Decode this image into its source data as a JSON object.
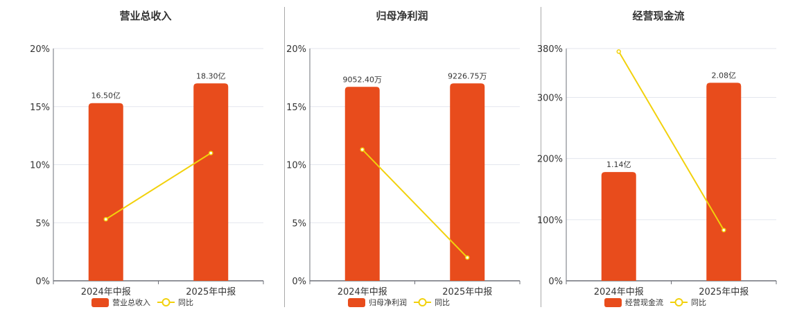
{
  "colors": {
    "bar": "#E84C1C",
    "line": "#F2D10C",
    "grid": "#e3e6ee",
    "axis": "#6e7079"
  },
  "legend": {
    "line_label": "同比"
  },
  "chart_data": [
    {
      "type": "bar+line",
      "title": "营业总收入",
      "categories": [
        "2024年中报",
        "2025年中报"
      ],
      "series": [
        {
          "name": "营业总收入",
          "type": "bar",
          "values": [
            15.3,
            17.0
          ],
          "labels": [
            "16.50亿",
            "18.30亿"
          ]
        },
        {
          "name": "同比",
          "type": "line",
          "values": [
            5.3,
            11.0
          ]
        }
      ],
      "y_ticks": [
        "0%",
        "5%",
        "10%",
        "15%",
        "20%"
      ],
      "ylim": [
        0,
        20
      ],
      "grid": true,
      "legend_position": "bottom"
    },
    {
      "type": "bar+line",
      "title": "归母净利润",
      "categories": [
        "2024年中报",
        "2025年中报"
      ],
      "series": [
        {
          "name": "归母净利润",
          "type": "bar",
          "values": [
            16.7,
            17.0
          ],
          "labels": [
            "9052.40万",
            "9226.75万"
          ]
        },
        {
          "name": "同比",
          "type": "line",
          "values": [
            11.3,
            2.0
          ]
        }
      ],
      "y_ticks": [
        "0%",
        "5%",
        "10%",
        "15%",
        "20%"
      ],
      "ylim": [
        0,
        20
      ],
      "grid": true,
      "legend_position": "bottom"
    },
    {
      "type": "bar+line",
      "title": "经营现金流",
      "categories": [
        "2024年中报",
        "2025年中报"
      ],
      "series": [
        {
          "name": "经营现金流",
          "type": "bar",
          "values": [
            178,
            324
          ],
          "labels": [
            "1.14亿",
            "2.08亿"
          ]
        },
        {
          "name": "同比",
          "type": "line",
          "values": [
            375,
            83
          ]
        }
      ],
      "y_ticks": [
        "0%",
        "100%",
        "200%",
        "300%",
        "380%"
      ],
      "y_tick_values": [
        0,
        100,
        200,
        300,
        380
      ],
      "ylim": [
        0,
        380
      ],
      "grid": true,
      "legend_position": "bottom"
    }
  ]
}
